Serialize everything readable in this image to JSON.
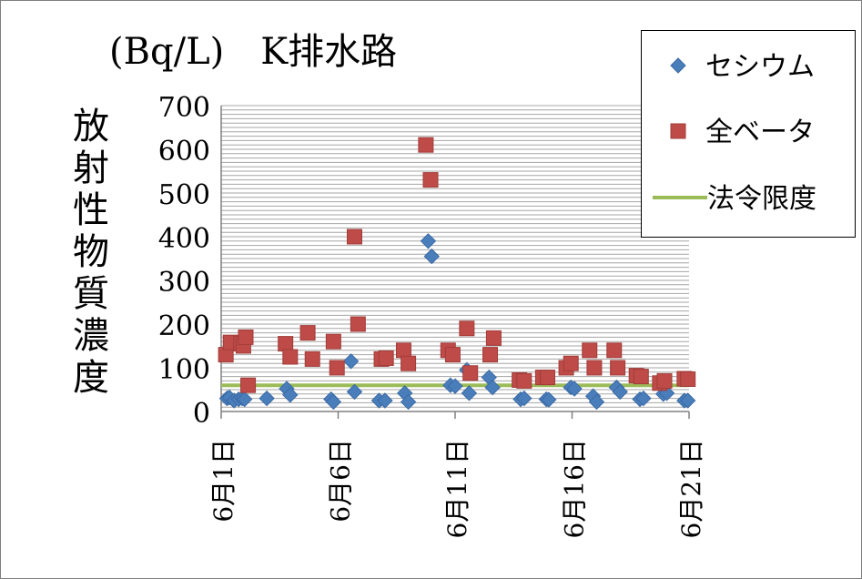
{
  "chart_data": {
    "type": "scatter",
    "title": "(Bq/L)　K排水路",
    "ylabel": "放射性物質濃度",
    "xlabel": "",
    "ylim": [
      0,
      700
    ],
    "yticks": [
      0,
      100,
      200,
      300,
      400,
      500,
      600,
      700
    ],
    "xlim": [
      0,
      20
    ],
    "xticks": [
      {
        "x": 0,
        "label": "6月1日"
      },
      {
        "x": 5,
        "label": "6月6日"
      },
      {
        "x": 10,
        "label": "6月11日"
      },
      {
        "x": 15,
        "label": "6月16日"
      },
      {
        "x": 20,
        "label": "6月21日"
      }
    ],
    "grid": true,
    "legend_position": "top-right",
    "series": [
      {
        "name": "セシウム",
        "marker": "diamond",
        "color": "#4a7ebb",
        "points": [
          [
            0.25,
            30
          ],
          [
            0.35,
            32
          ],
          [
            0.55,
            25
          ],
          [
            0.75,
            28
          ],
          [
            0.9,
            30
          ],
          [
            1.0,
            28
          ],
          [
            1.95,
            30
          ],
          [
            2.8,
            52
          ],
          [
            2.95,
            38
          ],
          [
            4.7,
            28
          ],
          [
            4.8,
            22
          ],
          [
            5.55,
            115
          ],
          [
            5.7,
            45
          ],
          [
            6.75,
            25
          ],
          [
            7.0,
            25
          ],
          [
            7.85,
            42
          ],
          [
            8.0,
            22
          ],
          [
            8.85,
            390
          ],
          [
            9.0,
            355
          ],
          [
            9.8,
            60
          ],
          [
            10.0,
            58
          ],
          [
            10.5,
            95
          ],
          [
            10.6,
            42
          ],
          [
            11.45,
            78
          ],
          [
            11.6,
            55
          ],
          [
            12.8,
            28
          ],
          [
            12.95,
            30
          ],
          [
            13.9,
            28
          ],
          [
            14.0,
            27
          ],
          [
            14.95,
            55
          ],
          [
            15.1,
            52
          ],
          [
            15.9,
            35
          ],
          [
            16.05,
            22
          ],
          [
            16.9,
            55
          ],
          [
            17.05,
            45
          ],
          [
            17.9,
            28
          ],
          [
            18.05,
            30
          ],
          [
            18.9,
            40
          ],
          [
            19.05,
            42
          ],
          [
            19.8,
            25
          ],
          [
            19.95,
            25
          ]
        ]
      },
      {
        "name": "全ベータ",
        "marker": "square",
        "color": "#be4b48",
        "points": [
          [
            0.2,
            130
          ],
          [
            0.4,
            158
          ],
          [
            0.85,
            155
          ],
          [
            0.95,
            150
          ],
          [
            1.05,
            170
          ],
          [
            1.15,
            60
          ],
          [
            2.75,
            155
          ],
          [
            2.95,
            125
          ],
          [
            3.7,
            180
          ],
          [
            3.9,
            120
          ],
          [
            4.8,
            160
          ],
          [
            4.95,
            100
          ],
          [
            5.7,
            400
          ],
          [
            5.85,
            200
          ],
          [
            6.85,
            120
          ],
          [
            7.05,
            122
          ],
          [
            7.8,
            140
          ],
          [
            8.0,
            110
          ],
          [
            8.75,
            610
          ],
          [
            8.95,
            530
          ],
          [
            9.7,
            140
          ],
          [
            9.9,
            130
          ],
          [
            10.5,
            190
          ],
          [
            10.65,
            88
          ],
          [
            11.5,
            130
          ],
          [
            11.65,
            168
          ],
          [
            12.75,
            72
          ],
          [
            12.95,
            70
          ],
          [
            13.75,
            78
          ],
          [
            13.95,
            78
          ],
          [
            14.75,
            100
          ],
          [
            14.95,
            110
          ],
          [
            15.75,
            140
          ],
          [
            15.95,
            100
          ],
          [
            16.8,
            140
          ],
          [
            16.95,
            100
          ],
          [
            17.75,
            82
          ],
          [
            17.95,
            80
          ],
          [
            18.75,
            65
          ],
          [
            18.95,
            70
          ],
          [
            19.8,
            75
          ],
          [
            19.95,
            74
          ]
        ]
      },
      {
        "name": "法令限度",
        "marker": "line",
        "color": "#9bbb59",
        "points": [
          [
            0,
            60
          ],
          [
            20,
            60
          ]
        ]
      }
    ]
  },
  "legend": {
    "items": [
      {
        "label": "セシウム"
      },
      {
        "label": "全ベータ"
      },
      {
        "label": "法令限度"
      }
    ]
  }
}
